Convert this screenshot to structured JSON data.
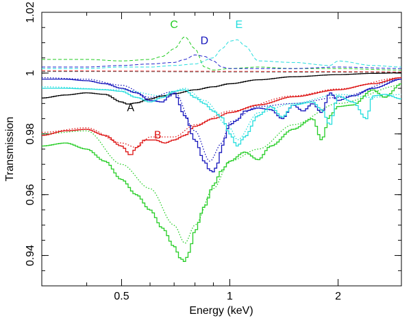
{
  "chart_data": {
    "type": "line",
    "title": "",
    "xlabel": "Energy (keV)",
    "ylabel": "Transmission",
    "xscale": "log",
    "xlim": [
      0.3,
      3.0
    ],
    "ylim": [
      0.93,
      1.02
    ],
    "x_ticks": [
      {
        "value": 0.5,
        "label": "0.5"
      },
      {
        "value": 1,
        "label": "1"
      },
      {
        "value": 2,
        "label": "2"
      }
    ],
    "x_minor_ticks": [
      0.3,
      0.4,
      0.6,
      0.7,
      0.8,
      0.9,
      3.0
    ],
    "y_ticks": [
      {
        "value": 0.94,
        "label": "0.94"
      },
      {
        "value": 0.96,
        "label": "0.96"
      },
      {
        "value": 0.98,
        "label": "0.98"
      },
      {
        "value": 1.0,
        "label": "1"
      },
      {
        "value": 1.02,
        "label": "1.02"
      }
    ],
    "y_minor_step": 0.005,
    "series": [
      {
        "name": "A",
        "label": "A",
        "color": "#000000",
        "style": "step",
        "x": [
          0.3,
          0.35,
          0.4,
          0.45,
          0.5,
          0.52,
          0.55,
          0.6,
          0.65,
          0.7,
          0.8,
          0.9,
          1.0,
          1.2,
          1.5,
          2.0,
          2.5,
          3.0
        ],
        "y": [
          0.9918,
          0.9928,
          0.9935,
          0.993,
          0.9905,
          0.9898,
          0.9902,
          0.9915,
          0.9925,
          0.9932,
          0.9945,
          0.9955,
          0.9965,
          0.9978,
          0.9988,
          0.9995,
          0.9999,
          1.0001
        ]
      },
      {
        "name": "B",
        "label": "B",
        "color": "#dd1111",
        "style": "step",
        "x": [
          0.3,
          0.35,
          0.4,
          0.45,
          0.5,
          0.53,
          0.55,
          0.58,
          0.62,
          0.66,
          0.7,
          0.75,
          0.8,
          0.9,
          1.0,
          1.2,
          1.5,
          2.0,
          2.5,
          3.0
        ],
        "y": [
          0.9795,
          0.981,
          0.9815,
          0.9795,
          0.976,
          0.973,
          0.9755,
          0.978,
          0.978,
          0.977,
          0.978,
          0.9795,
          0.9825,
          0.985,
          0.987,
          0.9895,
          0.9922,
          0.9945,
          0.9965,
          0.9985
        ]
      },
      {
        "name": "C",
        "label": "C",
        "color": "#22cc22",
        "style": "step",
        "x": [
          0.3,
          0.35,
          0.4,
          0.45,
          0.5,
          0.55,
          0.6,
          0.65,
          0.7,
          0.73,
          0.75,
          0.77,
          0.8,
          0.85,
          0.9,
          0.95,
          1.0,
          1.1,
          1.2,
          1.3,
          1.5,
          1.7,
          1.8,
          1.9,
          2.0,
          2.2,
          2.5,
          2.7,
          3.0
        ],
        "y": [
          0.976,
          0.977,
          0.975,
          0.971,
          0.965,
          0.96,
          0.955,
          0.949,
          0.943,
          0.939,
          0.938,
          0.941,
          0.948,
          0.956,
          0.963,
          0.968,
          0.971,
          0.974,
          0.9715,
          0.976,
          0.9815,
          0.985,
          0.978,
          0.986,
          0.989,
          0.9895,
          0.9945,
          0.992,
          0.9965
        ]
      },
      {
        "name": "D",
        "label": "D",
        "color": "#1111bb",
        "style": "step",
        "x": [
          0.3,
          0.35,
          0.4,
          0.45,
          0.5,
          0.55,
          0.6,
          0.65,
          0.68,
          0.7,
          0.75,
          0.8,
          0.85,
          0.88,
          0.9,
          0.93,
          0.95,
          1.0,
          1.05,
          1.1,
          1.2,
          1.3,
          1.4,
          1.5,
          1.6,
          1.7,
          1.8,
          1.9,
          2.0,
          2.2,
          2.5,
          3.0
        ],
        "y": [
          0.998,
          0.998,
          0.9975,
          0.9965,
          0.995,
          0.9935,
          0.991,
          0.9905,
          0.9925,
          0.9935,
          0.986,
          0.978,
          0.971,
          0.968,
          0.9675,
          0.9705,
          0.976,
          0.983,
          0.9845,
          0.9875,
          0.9885,
          0.988,
          0.985,
          0.9895,
          0.9875,
          0.99,
          0.987,
          0.9935,
          0.991,
          0.9925,
          0.995,
          0.998
        ]
      },
      {
        "name": "E",
        "label": "E",
        "color": "#22dddd",
        "style": "step",
        "x": [
          0.3,
          0.35,
          0.4,
          0.45,
          0.5,
          0.55,
          0.6,
          0.65,
          0.7,
          0.75,
          0.8,
          0.85,
          0.9,
          0.95,
          1.0,
          1.05,
          1.1,
          1.2,
          1.3,
          1.4,
          1.5,
          1.7,
          1.8,
          1.9,
          2.0,
          2.2,
          2.4,
          2.5,
          2.7,
          3.0
        ],
        "y": [
          0.995,
          0.995,
          0.9948,
          0.9945,
          0.994,
          0.992,
          0.9905,
          0.992,
          0.994,
          0.9945,
          0.992,
          0.99,
          0.9875,
          0.9855,
          0.98,
          0.976,
          0.979,
          0.986,
          0.989,
          0.9855,
          0.9895,
          0.9905,
          0.988,
          0.983,
          0.9925,
          0.9905,
          0.985,
          0.9925,
          0.993,
          0.9915
        ]
      }
    ],
    "absorber_series": [
      {
        "name": "C-model",
        "color": "#22cc22",
        "style": "dotted",
        "x": [
          0.3,
          0.4,
          0.5,
          0.6,
          0.7,
          0.75,
          0.8,
          0.9,
          1.0,
          1.2,
          1.5,
          2.0,
          3.0
        ],
        "y": [
          0.98,
          0.981,
          0.97,
          0.962,
          0.95,
          0.944,
          0.95,
          0.962,
          0.971,
          0.975,
          0.983,
          0.99,
          0.996
        ]
      },
      {
        "name": "D-model",
        "color": "#1111bb",
        "style": "dotted",
        "x": [
          0.3,
          0.4,
          0.5,
          0.6,
          0.7,
          0.8,
          0.88,
          0.95,
          1.0,
          1.2,
          1.5,
          2.0,
          3.0
        ],
        "y": [
          0.9985,
          0.998,
          0.996,
          0.992,
          0.994,
          0.981,
          0.971,
          0.977,
          0.984,
          0.989,
          0.99,
          0.992,
          0.998
        ]
      },
      {
        "name": "B-model",
        "color": "#dd1111",
        "style": "dotted",
        "x": [
          0.3,
          0.4,
          0.5,
          0.55,
          0.6,
          0.7,
          0.8,
          1.0,
          1.5,
          2.0,
          3.0
        ],
        "y": [
          0.9805,
          0.982,
          0.977,
          0.9755,
          0.979,
          0.979,
          0.983,
          0.9875,
          0.9925,
          0.9948,
          0.9985
        ]
      },
      {
        "name": "E-model",
        "color": "#22dddd",
        "style": "dotted",
        "x": [
          0.3,
          0.5,
          0.65,
          0.75,
          0.85,
          1.0,
          1.05,
          1.2,
          1.5,
          2.0,
          2.5,
          3.0
        ],
        "y": [
          0.9955,
          0.9945,
          0.9925,
          0.995,
          0.991,
          0.982,
          0.978,
          0.987,
          0.99,
          0.993,
          0.992,
          0.993
        ]
      }
    ],
    "emission_series": [
      {
        "name": "C-emission",
        "color": "#22cc22",
        "style": "dashed",
        "x": [
          0.3,
          0.4,
          0.5,
          0.6,
          0.65,
          0.7,
          0.75,
          0.8,
          0.85,
          0.9,
          1.0,
          1.2,
          1.5,
          2.0,
          3.0
        ],
        "y": [
          1.0045,
          1.0045,
          1.004,
          1.0045,
          1.0055,
          1.008,
          1.012,
          1.008,
          1.002,
          1.001,
          1.0015,
          1.002,
          1.0015,
          1.0015,
          1.001
        ]
      },
      {
        "name": "D-emission",
        "color": "#2222cc",
        "style": "dashed",
        "x": [
          0.3,
          0.4,
          0.5,
          0.6,
          0.7,
          0.75,
          0.8,
          0.85,
          0.9,
          0.95,
          1.0,
          1.2,
          1.5,
          2.0,
          3.0
        ],
        "y": [
          1.002,
          1.002,
          1.0025,
          1.003,
          1.0035,
          1.0045,
          1.006,
          1.0055,
          1.004,
          1.002,
          1.0015,
          1.0015,
          1.0015,
          1.002,
          1.0015
        ]
      },
      {
        "name": "E-emission",
        "color": "#22dddd",
        "style": "dashed",
        "x": [
          0.3,
          0.4,
          0.5,
          0.6,
          0.7,
          0.8,
          0.9,
          0.95,
          1.0,
          1.05,
          1.1,
          1.2,
          1.5,
          1.9,
          2.0,
          2.5,
          3.0
        ],
        "y": [
          1.0015,
          1.0015,
          1.002,
          1.002,
          1.0025,
          1.003,
          1.005,
          1.008,
          1.0105,
          1.011,
          1.009,
          1.004,
          1.0035,
          1.0025,
          1.004,
          1.0025,
          1.002
        ]
      },
      {
        "name": "A-emission",
        "color": "#555555",
        "style": "dashed",
        "x": [
          0.3,
          0.5,
          1.0,
          2.0,
          3.0
        ],
        "y": [
          1.0005,
          1.0005,
          1.0004,
          1.0003,
          1.0002
        ]
      },
      {
        "name": "B-emission",
        "color": "#ee4444",
        "style": "dashed",
        "x": [
          0.3,
          0.5,
          1.0,
          2.0,
          3.0
        ],
        "y": [
          1.0008,
          1.0007,
          1.0006,
          1.0005,
          1.0004
        ]
      }
    ],
    "annotations": [
      {
        "text": "A",
        "color": "#000000",
        "x": 0.53,
        "y": 0.9875
      },
      {
        "text": "B",
        "color": "#dd1111",
        "x": 0.63,
        "y": 0.9785
      },
      {
        "text": "C",
        "color": "#22cc22",
        "x": 0.7,
        "y": 1.0148
      },
      {
        "text": "D",
        "color": "#1111bb",
        "x": 0.85,
        "y": 1.0095
      },
      {
        "text": "E",
        "color": "#22dddd",
        "x": 1.06,
        "y": 1.0148
      }
    ]
  }
}
